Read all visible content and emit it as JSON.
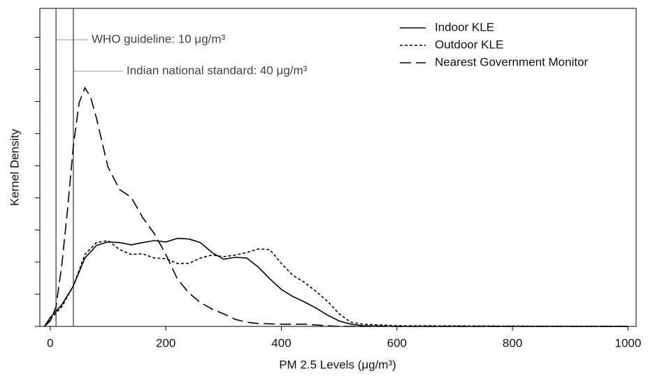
{
  "chart_data": {
    "type": "line",
    "xlabel": "PM 2.5 Levels (μg/m³)",
    "ylabel": "Kernel Density",
    "xlim": [
      -18,
      1014
    ],
    "xticks": [
      0,
      200,
      400,
      600,
      800,
      1000
    ],
    "ylim": [
      0,
      0.0099
    ],
    "yticks": [
      0,
      0.001,
      0.002,
      0.003,
      0.004,
      0.005,
      0.006,
      0.007,
      0.008,
      0.009
    ],
    "legend": "upper right",
    "annotations": [
      {
        "x": 10,
        "text": "WHO guideline: 10 μg/m³"
      },
      {
        "x": 40,
        "text": "Indian national standard: 40 μg/m³"
      }
    ],
    "series": [
      {
        "name": "Indoor KLE",
        "color": "#000000",
        "dash": "solid",
        "x": [
          -10,
          0,
          20,
          40,
          60,
          80,
          100,
          120,
          140,
          160,
          180,
          200,
          220,
          240,
          260,
          280,
          300,
          320,
          340,
          360,
          380,
          400,
          420,
          440,
          460,
          480,
          500,
          520,
          540,
          600,
          1000
        ],
        "values": [
          0,
          0.00028,
          0.00067,
          0.00126,
          0.00213,
          0.00252,
          0.00263,
          0.00261,
          0.00254,
          0.00261,
          0.00267,
          0.00263,
          0.00274,
          0.00272,
          0.00261,
          0.0023,
          0.00209,
          0.00215,
          0.00213,
          0.00185,
          0.00148,
          0.00115,
          0.00093,
          0.00076,
          0.00057,
          0.00035,
          0.00017,
          7e-05,
          2e-05,
          0,
          0
        ]
      },
      {
        "name": "Outdoor KLE",
        "color": "#000000",
        "dash": "dotted",
        "x": [
          -10,
          0,
          20,
          40,
          60,
          80,
          100,
          120,
          140,
          160,
          180,
          200,
          220,
          240,
          260,
          280,
          300,
          320,
          340,
          360,
          380,
          400,
          420,
          440,
          460,
          480,
          500,
          520,
          540,
          600,
          1000
        ],
        "values": [
          0,
          0.00022,
          0.00061,
          0.00126,
          0.00224,
          0.00261,
          0.00267,
          0.00239,
          0.00224,
          0.00226,
          0.00213,
          0.00211,
          0.00196,
          0.00196,
          0.00213,
          0.00222,
          0.00217,
          0.00222,
          0.0023,
          0.00241,
          0.00239,
          0.00196,
          0.00159,
          0.00137,
          0.00109,
          0.00078,
          0.00039,
          0.00013,
          7e-05,
          2e-05,
          0
        ]
      },
      {
        "name": "Nearest Government Monitor",
        "color": "#000000",
        "dash": "dashed",
        "x": [
          -10,
          0,
          10,
          20,
          30,
          40,
          50,
          60,
          70,
          80,
          100,
          120,
          140,
          160,
          180,
          200,
          220,
          240,
          260,
          280,
          300,
          320,
          340,
          360,
          400,
          440,
          480,
          500,
          1000
        ],
        "values": [
          0,
          0.00017,
          0.00061,
          0.00191,
          0.00365,
          0.00561,
          0.00696,
          0.00743,
          0.00713,
          0.00648,
          0.00496,
          0.00426,
          0.00402,
          0.00339,
          0.00289,
          0.00224,
          0.00148,
          0.00104,
          0.00074,
          0.00054,
          0.00039,
          0.00022,
          0.00013,
          9e-05,
          7e-05,
          7e-05,
          2e-05,
          0,
          0
        ]
      }
    ]
  }
}
